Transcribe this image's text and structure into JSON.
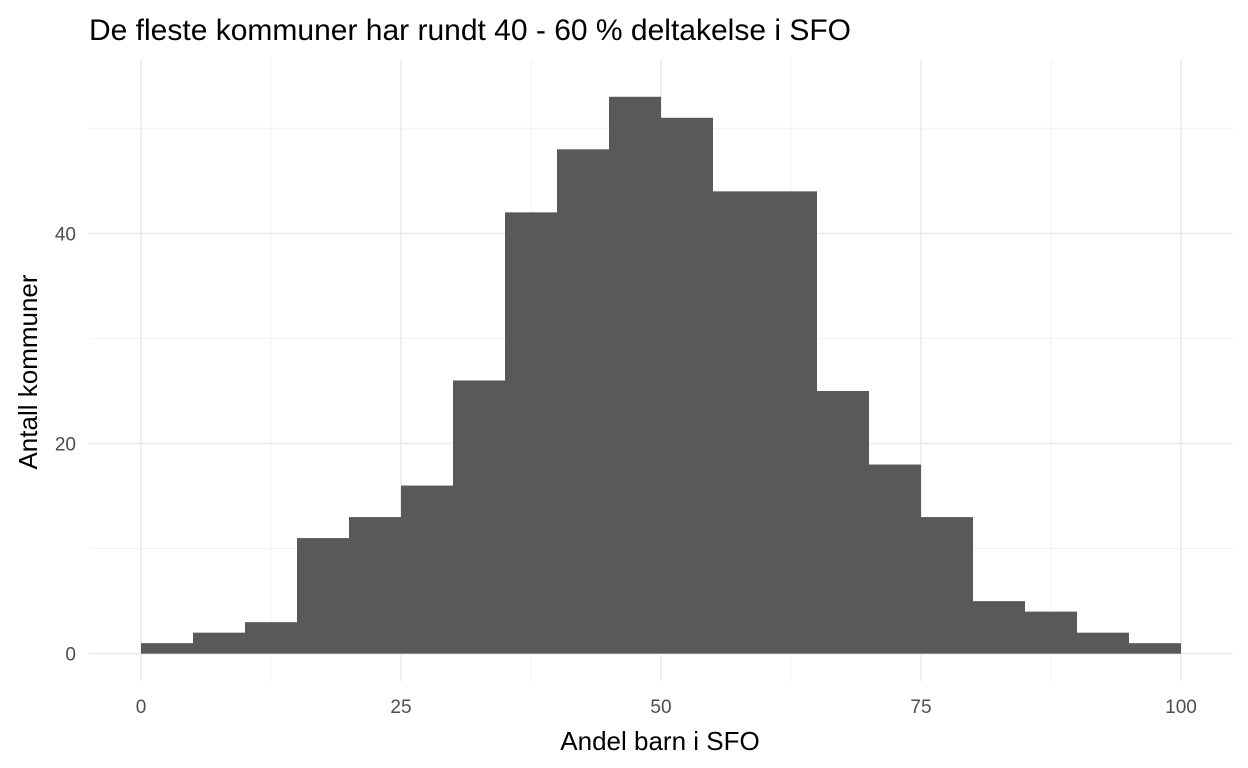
{
  "chart_data": {
    "type": "bar",
    "title": "De fleste kommuner har rundt 40 - 60 % deltakelse i SFO",
    "xlabel": "Andel barn i SFO",
    "ylabel": "Antall kommuner",
    "xlim": [
      -5,
      105
    ],
    "ylim": [
      -2.6,
      56.5
    ],
    "x_ticks": [
      0,
      25,
      50,
      75,
      100
    ],
    "y_ticks": [
      0,
      20,
      40
    ],
    "grid": true,
    "bar_color": "#595959",
    "bins": [
      {
        "x0": 0,
        "x1": 5,
        "count": 1
      },
      {
        "x0": 5,
        "x1": 10,
        "count": 2
      },
      {
        "x0": 10,
        "x1": 15,
        "count": 3
      },
      {
        "x0": 15,
        "x1": 20,
        "count": 11
      },
      {
        "x0": 20,
        "x1": 25,
        "count": 13
      },
      {
        "x0": 25,
        "x1": 30,
        "count": 16
      },
      {
        "x0": 30,
        "x1": 35,
        "count": 26
      },
      {
        "x0": 35,
        "x1": 40,
        "count": 42
      },
      {
        "x0": 40,
        "x1": 45,
        "count": 48
      },
      {
        "x0": 45,
        "x1": 50,
        "count": 53
      },
      {
        "x0": 50,
        "x1": 55,
        "count": 51
      },
      {
        "x0": 55,
        "x1": 60,
        "count": 44
      },
      {
        "x0": 60,
        "x1": 65,
        "count": 44
      },
      {
        "x0": 65,
        "x1": 70,
        "count": 25
      },
      {
        "x0": 70,
        "x1": 75,
        "count": 18
      },
      {
        "x0": 75,
        "x1": 80,
        "count": 13
      },
      {
        "x0": 80,
        "x1": 85,
        "count": 5
      },
      {
        "x0": 85,
        "x1": 90,
        "count": 4
      },
      {
        "x0": 90,
        "x1": 95,
        "count": 2
      },
      {
        "x0": 95,
        "x1": 100,
        "count": 1
      }
    ]
  }
}
